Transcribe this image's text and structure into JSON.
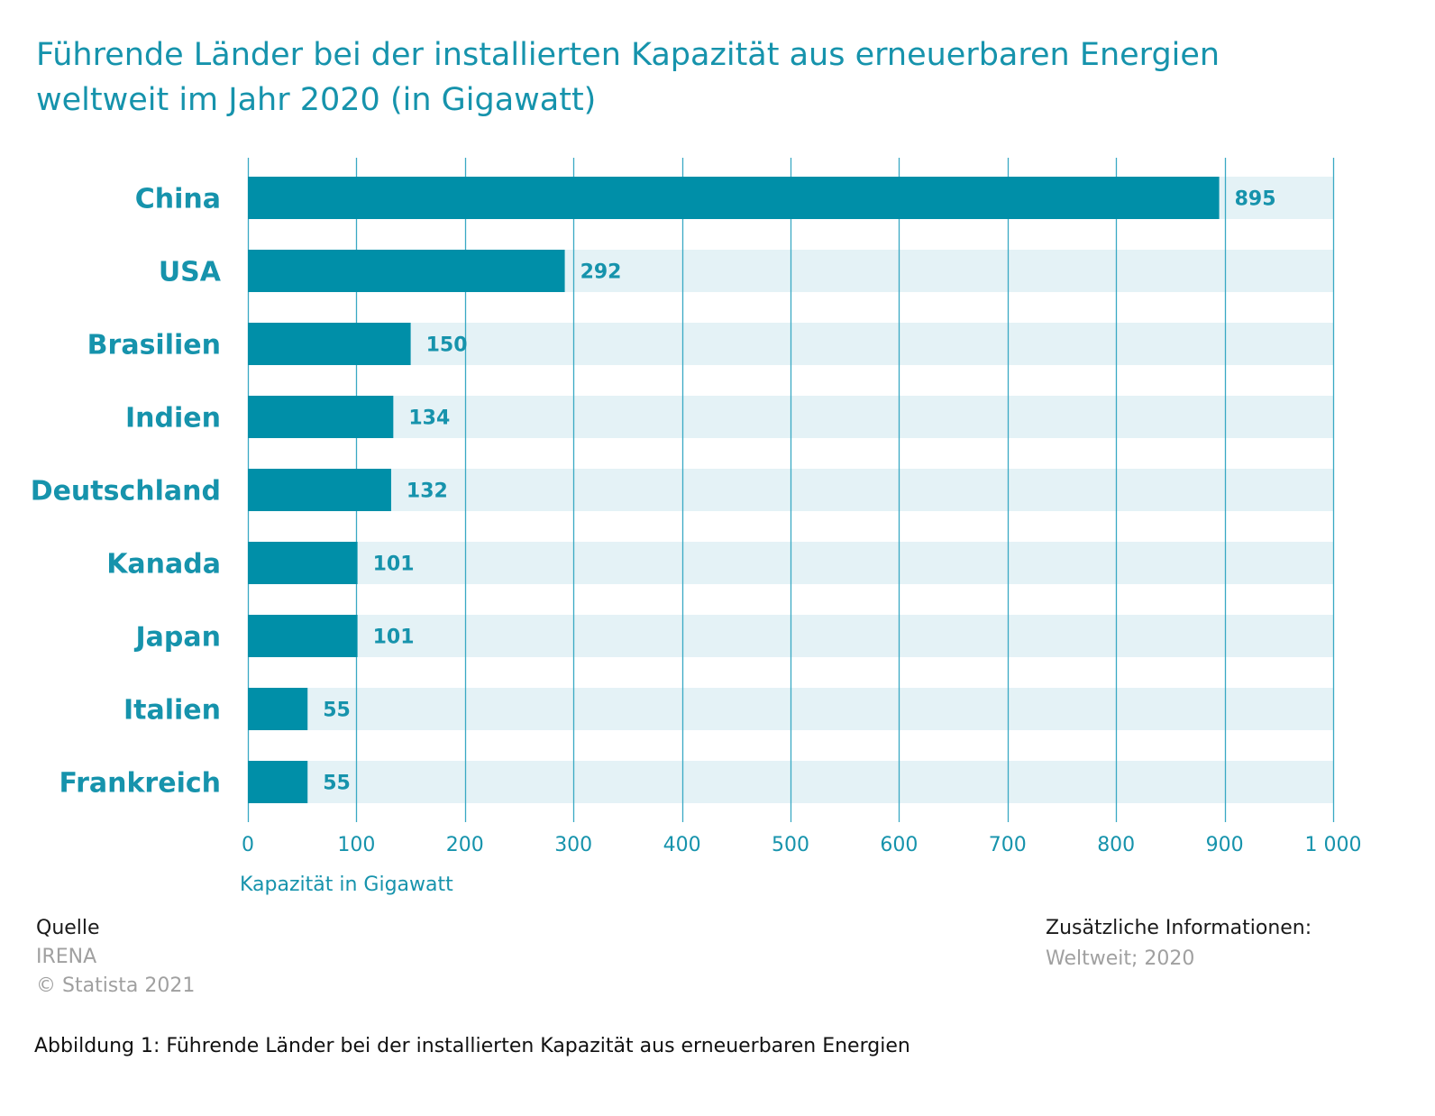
{
  "chart_data": {
    "type": "bar",
    "orientation": "horizontal",
    "title": "Führende Länder bei der installierten Kapazität aus erneuerbaren Energien weltweit im Jahr 2020 (in Gigawatt)",
    "categories": [
      "China",
      "USA",
      "Brasilien",
      "Indien",
      "Deutschland",
      "Kanada",
      "Japan",
      "Italien",
      "Frankreich"
    ],
    "values": [
      895,
      292,
      150,
      134,
      132,
      101,
      101,
      55,
      55
    ],
    "value_labels": [
      "895",
      "292",
      "150",
      "134",
      "132",
      "101",
      "101",
      "55",
      "55"
    ],
    "xlabel": "Kapazität in Gigawatt",
    "ylabel": "",
    "xlim": [
      0,
      1000
    ],
    "xticks": [
      0,
      100,
      200,
      300,
      400,
      500,
      600,
      700,
      800,
      900,
      1000
    ],
    "xtick_labels": [
      "0",
      "100",
      "200",
      "300",
      "400",
      "500",
      "600",
      "700",
      "800",
      "900",
      "1 000"
    ],
    "grid": "vertical",
    "legend": "none",
    "colors": {
      "bar": "#008fa8",
      "band": "#e4f2f6",
      "grid": "#3aa9c4",
      "text": "#1693ac"
    }
  },
  "title_line1": "Führende Länder bei der installierten Kapazität aus erneuerbaren Energien",
  "title_line2": "weltweit im Jahr 2020 (in Gigawatt)",
  "source": {
    "heading": "Quelle",
    "name": "IRENA",
    "copyright": "© Statista 2021"
  },
  "info": {
    "heading": "Zusätzliche Informationen:",
    "value": "Weltweit; 2020"
  },
  "caption": "Abbildung 1: Führende Länder bei der installierten Kapazität aus erneuerbaren Energien"
}
